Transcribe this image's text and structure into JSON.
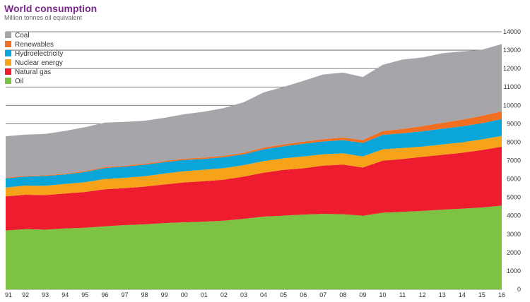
{
  "chart_data": {
    "type": "area",
    "stacked": true,
    "title": "World consumption",
    "subtitle": "Million tonnes oil equivalent",
    "xlabel": "",
    "ylabel": "",
    "categories": [
      "91",
      "92",
      "93",
      "94",
      "95",
      "96",
      "97",
      "98",
      "99",
      "00",
      "01",
      "02",
      "03",
      "04",
      "05",
      "06",
      "07",
      "08",
      "09",
      "10",
      "11",
      "12",
      "13",
      "14",
      "15",
      "16"
    ],
    "ylim": [
      0,
      14000
    ],
    "yticks": [
      0,
      1000,
      2000,
      3000,
      4000,
      5000,
      6000,
      7000,
      8000,
      9000,
      10000,
      11000,
      12000,
      13000,
      14000
    ],
    "grid": "horizontal",
    "legend_position": "top-left",
    "series": [
      {
        "name": "Oil",
        "color": "#7dc242",
        "values": [
          3200,
          3270,
          3240,
          3310,
          3350,
          3420,
          3490,
          3530,
          3600,
          3640,
          3680,
          3730,
          3830,
          3950,
          4010,
          4060,
          4100,
          4080,
          4000,
          4160,
          4210,
          4260,
          4330,
          4380,
          4450,
          4550
        ]
      },
      {
        "name": "Natural gas",
        "color": "#ed1c2e",
        "values": [
          1850,
          1870,
          1880,
          1900,
          1940,
          2020,
          2010,
          2050,
          2100,
          2170,
          2200,
          2230,
          2300,
          2390,
          2480,
          2520,
          2620,
          2700,
          2620,
          2830,
          2870,
          2940,
          2980,
          3040,
          3120,
          3200
        ]
      },
      {
        "name": "Nuclear energy",
        "color": "#f6a31a",
        "values": [
          480,
          500,
          510,
          520,
          530,
          560,
          560,
          570,
          590,
          610,
          620,
          630,
          620,
          630,
          630,
          640,
          620,
          610,
          600,
          620,
          600,
          560,
          560,
          570,
          580,
          590
        ]
      },
      {
        "name": "Hydroelectricity",
        "color": "#0aa5d9",
        "values": [
          500,
          490,
          530,
          510,
          560,
          590,
          610,
          620,
          620,
          610,
          590,
          590,
          590,
          640,
          660,
          690,
          700,
          720,
          730,
          790,
          800,
          830,
          860,
          870,
          880,
          920
        ]
      },
      {
        "name": "Renewables",
        "color": "#f26f21",
        "values": [
          40,
          40,
          40,
          40,
          45,
          50,
          50,
          55,
          60,
          65,
          70,
          75,
          80,
          90,
          100,
          110,
          120,
          140,
          160,
          200,
          240,
          280,
          320,
          360,
          400,
          420
        ]
      },
      {
        "name": "Coal",
        "color": "#a7a5a9",
        "values": [
          2250,
          2240,
          2250,
          2330,
          2390,
          2420,
          2380,
          2340,
          2350,
          2420,
          2500,
          2600,
          2750,
          3000,
          3120,
          3310,
          3520,
          3530,
          3430,
          3600,
          3770,
          3730,
          3780,
          3710,
          3590,
          3650
        ]
      }
    ],
    "legend_order": [
      "Coal",
      "Renewables",
      "Hydroelectricity",
      "Nuclear energy",
      "Natural gas",
      "Oil"
    ]
  }
}
